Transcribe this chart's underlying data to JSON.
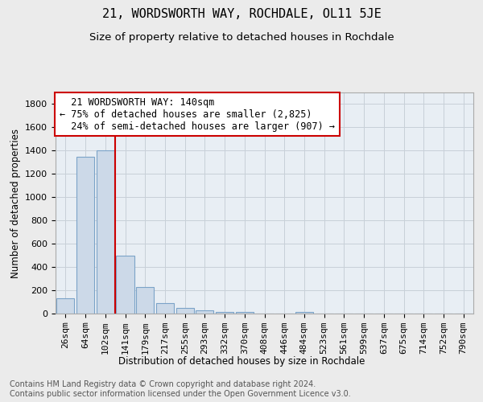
{
  "title": "21, WORDSWORTH WAY, ROCHDALE, OL11 5JE",
  "subtitle": "Size of property relative to detached houses in Rochdale",
  "xlabel": "Distribution of detached houses by size in Rochdale",
  "ylabel": "Number of detached properties",
  "footer_line1": "Contains HM Land Registry data © Crown copyright and database right 2024.",
  "footer_line2": "Contains public sector information licensed under the Open Government Licence v3.0.",
  "bar_labels": [
    "26sqm",
    "64sqm",
    "102sqm",
    "141sqm",
    "179sqm",
    "217sqm",
    "255sqm",
    "293sqm",
    "332sqm",
    "370sqm",
    "408sqm",
    "446sqm",
    "484sqm",
    "523sqm",
    "561sqm",
    "599sqm",
    "637sqm",
    "675sqm",
    "714sqm",
    "752sqm",
    "790sqm"
  ],
  "bar_values": [
    130,
    1350,
    1400,
    500,
    230,
    90,
    50,
    25,
    15,
    15,
    0,
    0,
    15,
    0,
    0,
    0,
    0,
    0,
    0,
    0,
    0
  ],
  "bar_color": "#ccd9e8",
  "bar_edge_color": "#7ba3c8",
  "vline_x": 2.5,
  "vline_color": "#cc0000",
  "annotation_text": "  21 WORDSWORTH WAY: 140sqm\n← 75% of detached houses are smaller (2,825)\n  24% of semi-detached houses are larger (907) →",
  "annotation_fontsize": 8.5,
  "ylim": [
    0,
    1900
  ],
  "yticks": [
    0,
    200,
    400,
    600,
    800,
    1000,
    1200,
    1400,
    1600,
    1800
  ],
  "title_fontsize": 11,
  "subtitle_fontsize": 9.5,
  "xlabel_fontsize": 8.5,
  "ylabel_fontsize": 8.5,
  "tick_fontsize": 8,
  "footer_fontsize": 7,
  "bg_color": "#ebebeb",
  "plot_bg_color": "#e8eef4",
  "grid_color": "#c8d0d8"
}
